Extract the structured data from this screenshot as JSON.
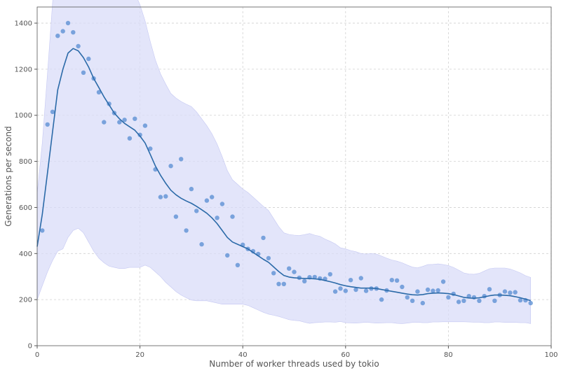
{
  "chart_data": {
    "type": "scatter",
    "xlabel": "Number of worker threads used by tokio",
    "ylabel": "Generations per second",
    "xlim": [
      0,
      100
    ],
    "ylim": [
      0,
      1470
    ],
    "x_ticks": [
      "0",
      "20",
      "40",
      "60",
      "80",
      "100"
    ],
    "y_ticks": [
      "0",
      "200",
      "400",
      "600",
      "800",
      "1000",
      "1200",
      "1400"
    ],
    "grid": true,
    "colors": {
      "points": "#5b8fd4",
      "line": "#2b6aa8",
      "band": "#d9dcf8",
      "band_edge": "#c5c8f2",
      "grid": "#d0d0d0",
      "axis": "#555555"
    },
    "series": [
      {
        "kind": "points",
        "x": [
          1,
          2,
          3,
          4,
          5,
          6,
          7,
          8,
          9,
          10,
          11,
          12,
          13,
          14,
          15,
          16,
          17,
          18,
          19,
          20,
          21,
          22,
          23,
          24,
          25,
          26,
          27,
          28,
          29,
          30,
          31,
          32,
          33,
          34,
          35,
          36,
          37,
          38,
          39,
          40,
          41,
          42,
          43,
          44,
          45,
          46,
          47,
          48,
          49,
          50,
          51,
          52,
          53,
          54,
          55,
          56,
          57,
          58,
          59,
          60,
          61,
          62,
          63,
          64,
          65,
          66,
          67,
          68,
          69,
          70,
          71,
          72,
          73,
          74,
          75,
          76,
          77,
          78,
          79,
          80,
          81,
          82,
          83,
          84,
          85,
          86,
          87,
          88,
          89,
          90,
          91,
          92,
          93,
          94,
          95,
          96
        ],
        "y": [
          500,
          960,
          1015,
          1345,
          1365,
          1400,
          1360,
          1300,
          1185,
          1245,
          1160,
          1100,
          970,
          1050,
          1010,
          970,
          980,
          900,
          985,
          915,
          955,
          855,
          765,
          645,
          648,
          780,
          560,
          810,
          500,
          680,
          585,
          440,
          630,
          645,
          555,
          615,
          392,
          560,
          350,
          438,
          420,
          410,
          398,
          468,
          380,
          315,
          268,
          268,
          335,
          320,
          295,
          280,
          297,
          298,
          292,
          290,
          310,
          235,
          248,
          238,
          285,
          243,
          293,
          238,
          248,
          248,
          200,
          240,
          285,
          283,
          255,
          210,
          195,
          235,
          185,
          243,
          238,
          240,
          278,
          210,
          225,
          190,
          195,
          215,
          210,
          195,
          215,
          245,
          195,
          220,
          235,
          230,
          232,
          197,
          197,
          185
        ]
      },
      {
        "kind": "smooth",
        "x": [
          0,
          1,
          2,
          3,
          4,
          5,
          6,
          7,
          8,
          9,
          10,
          11,
          12,
          13,
          14,
          15,
          16,
          17,
          18,
          19,
          20,
          21,
          22,
          23,
          24,
          25,
          26,
          27,
          28,
          29,
          30,
          31,
          32,
          33,
          34,
          35,
          36,
          37,
          38,
          39,
          40,
          41,
          42,
          43,
          44,
          45,
          46,
          47,
          48,
          49,
          50,
          51,
          52,
          53,
          54,
          55,
          56,
          57,
          58,
          59,
          60,
          61,
          62,
          63,
          64,
          65,
          66,
          67,
          68,
          69,
          70,
          71,
          72,
          73,
          74,
          75,
          76,
          77,
          78,
          79,
          80,
          81,
          82,
          83,
          84,
          85,
          86,
          87,
          88,
          89,
          90,
          91,
          92,
          93,
          94,
          95,
          96
        ],
        "y": [
          430,
          570,
          750,
          930,
          1110,
          1200,
          1270,
          1290,
          1280,
          1250,
          1210,
          1160,
          1120,
          1080,
          1045,
          1010,
          985,
          965,
          950,
          935,
          910,
          880,
          830,
          780,
          740,
          705,
          675,
          655,
          640,
          628,
          618,
          605,
          590,
          575,
          555,
          530,
          500,
          470,
          450,
          440,
          430,
          420,
          405,
          390,
          375,
          362,
          342,
          322,
          305,
          298,
          295,
          293,
          292,
          292,
          290,
          288,
          283,
          278,
          272,
          265,
          260,
          256,
          253,
          250,
          250,
          250,
          248,
          244,
          240,
          236,
          232,
          228,
          224,
          221,
          220,
          222,
          226,
          228,
          229,
          228,
          226,
          222,
          216,
          210,
          207,
          206,
          208,
          212,
          217,
          220,
          220,
          219,
          217,
          213,
          208,
          202,
          196
        ],
        "band": [
          230,
          310,
          430,
          560,
          700,
          780,
          800,
          790,
          770,
          760,
          760,
          750,
          740,
          720,
          700,
          670,
          650,
          630,
          610,
          595,
          570,
          530,
          490,
          460,
          440,
          430,
          420,
          420,
          420,
          420,
          420,
          410,
          395,
          380,
          365,
          345,
          320,
          290,
          270,
          260,
          250,
          245,
          240,
          235,
          230,
          225,
          210,
          195,
          185,
          185,
          185,
          185,
          190,
          195,
          190,
          187,
          180,
          175,
          170,
          160,
          160,
          157,
          155,
          150,
          148,
          150,
          150,
          145,
          140,
          136,
          135,
          132,
          126,
          120,
          118,
          122,
          126,
          125,
          126,
          124,
          122,
          118,
          112,
          106,
          104,
          104,
          106,
          112,
          117,
          117,
          117,
          118,
          116,
          112,
          108,
          102,
          100
        ]
      }
    ]
  }
}
